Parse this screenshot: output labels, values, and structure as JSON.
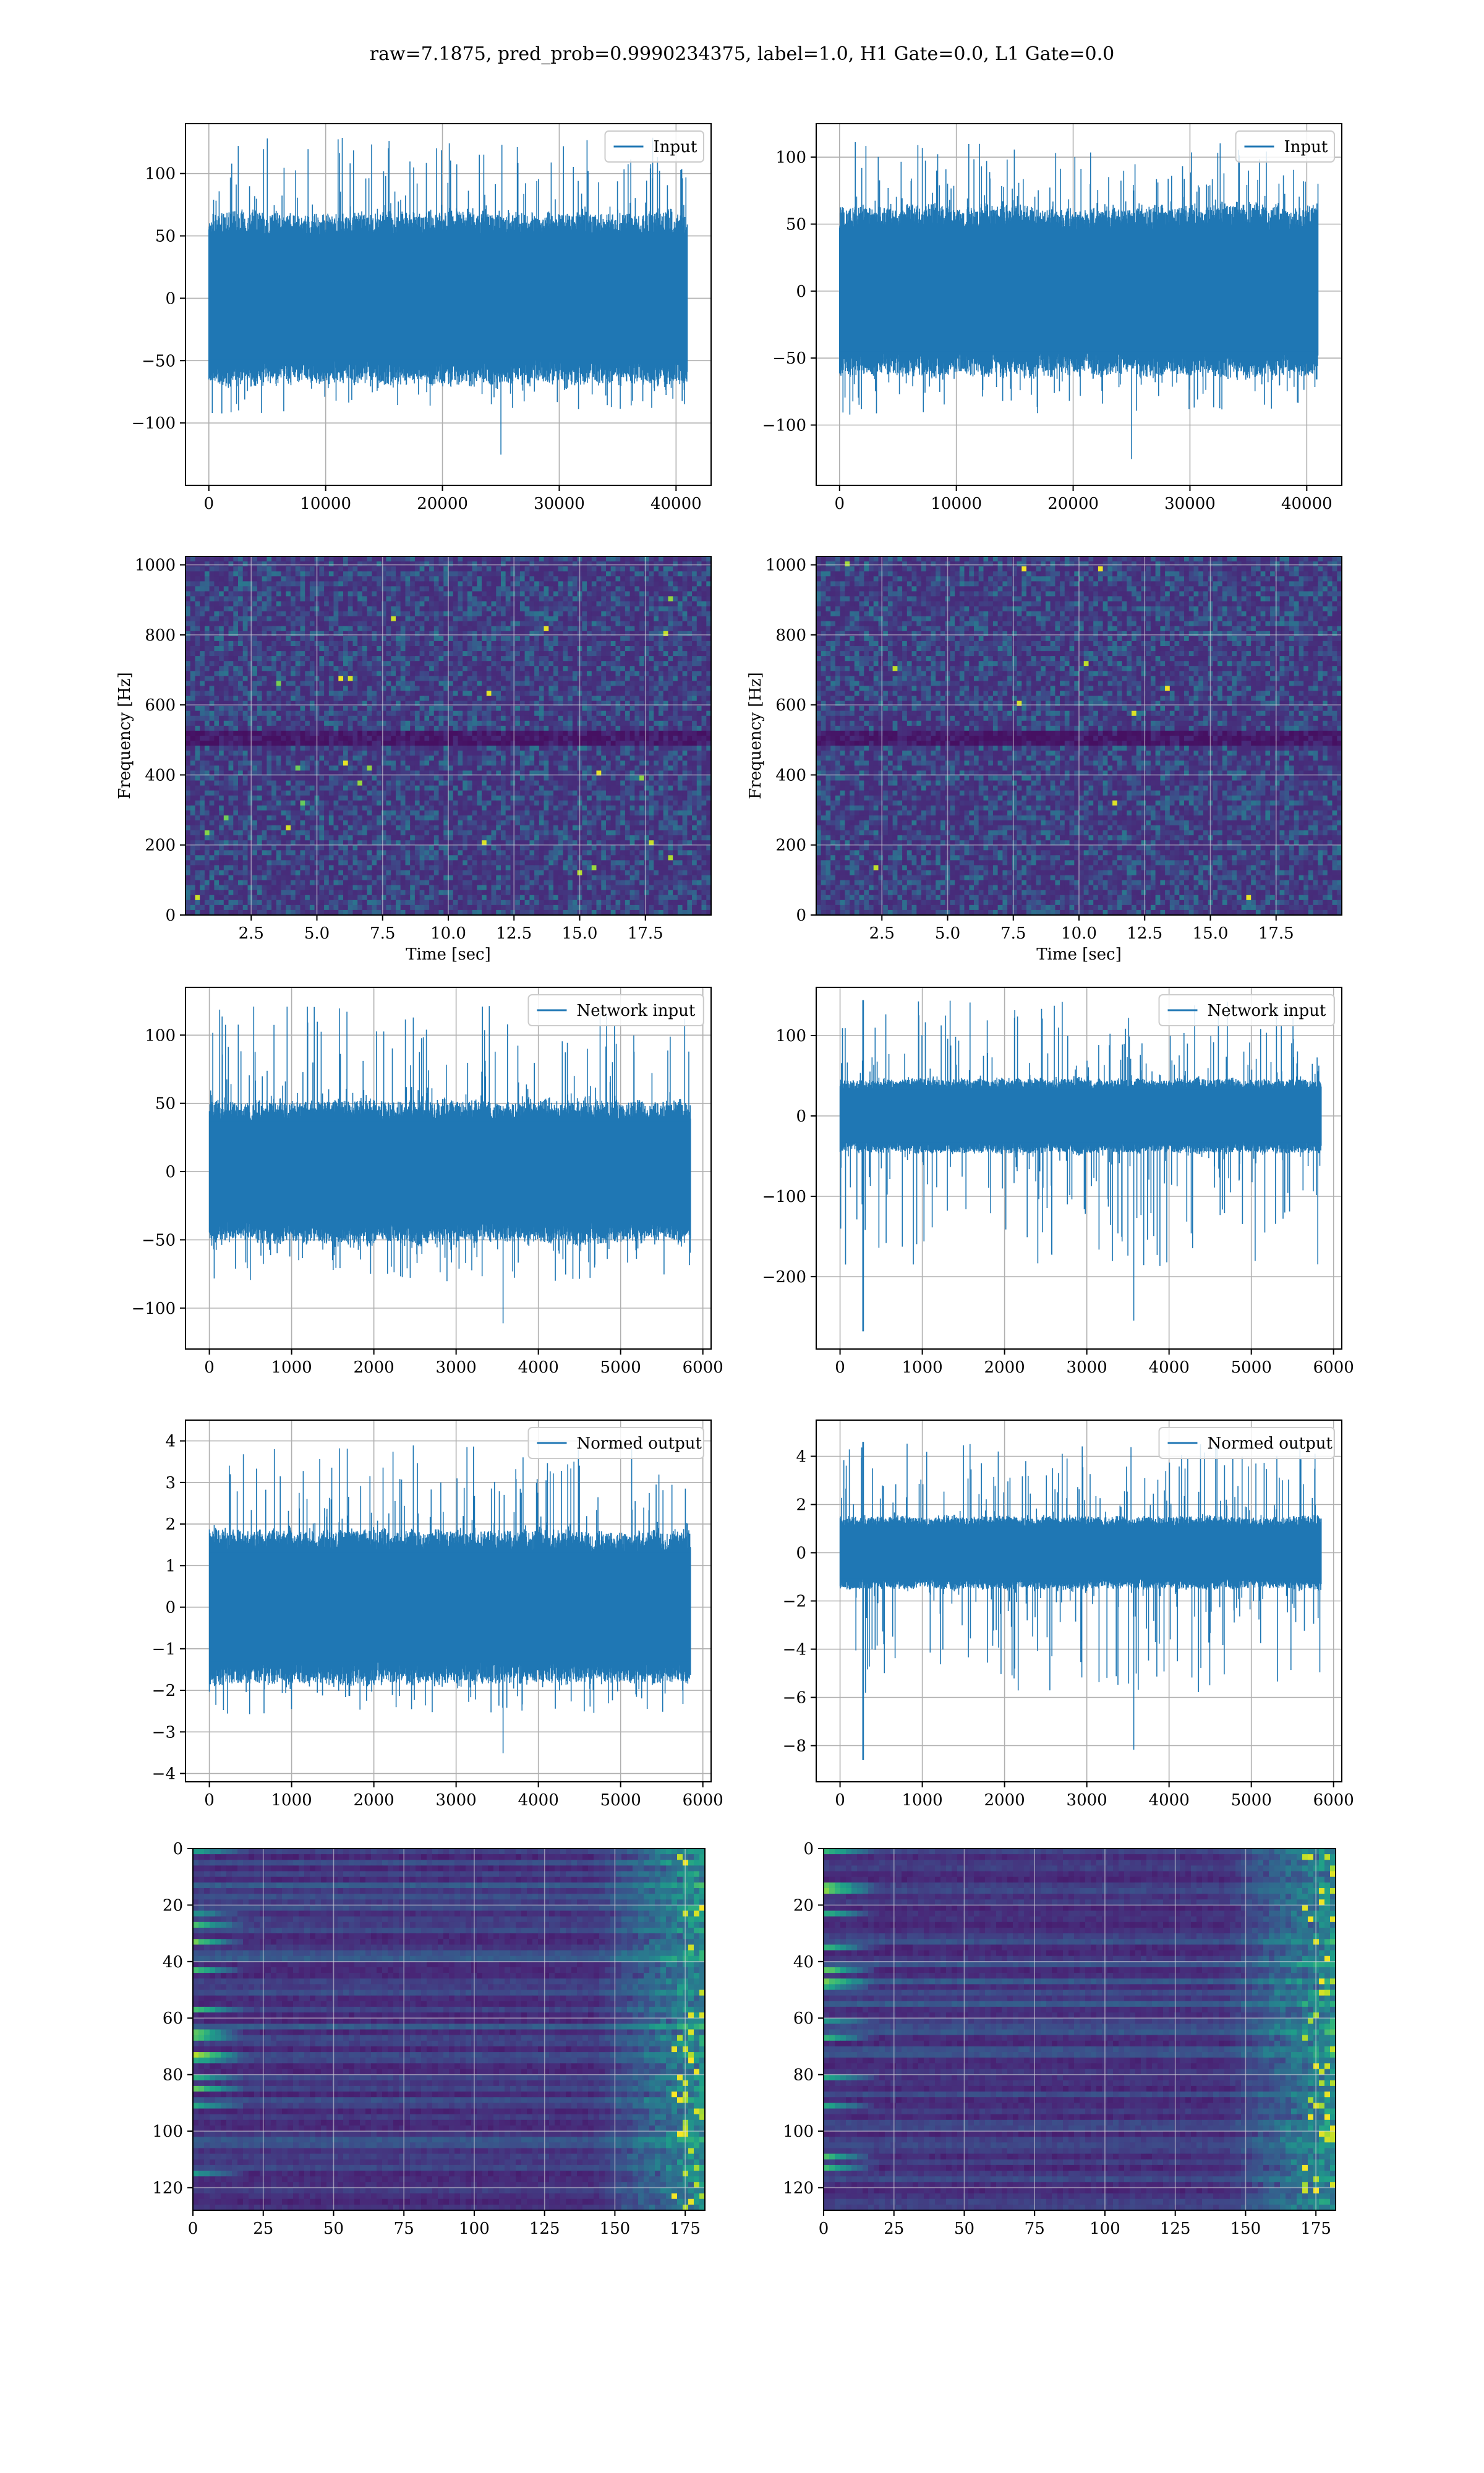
{
  "figure_title": "raw=7.1875, pred_prob=0.9990234375, label=1.0, H1 Gate=0.0, L1 Gate=0.0",
  "colors": {
    "line": "#1f77b4",
    "grid": "#b0b0b0",
    "axes": "#000000"
  },
  "chart_data": [
    {
      "type": "line",
      "id": "h1-input",
      "xlabel": "",
      "ylabel": "",
      "legend": {
        "labels": [
          "Input"
        ],
        "position": "upper right"
      },
      "xlim": [
        -2000,
        43000
      ],
      "ylim": [
        -150,
        140
      ],
      "grid": true,
      "xticks": [
        0,
        10000,
        20000,
        30000,
        40000
      ],
      "xticklabels": [
        "0",
        "10000",
        "20000",
        "30000",
        "40000"
      ],
      "yticks": [
        -100,
        -50,
        0,
        50,
        100
      ],
      "yticklabels": [
        "−100",
        "−50",
        "0",
        "50",
        "100"
      ],
      "series": [
        {
          "name": "Input",
          "x_range": [
            0,
            40960
          ],
          "n_points": 40960,
          "band_abs": 60,
          "spike_max": 130,
          "spike_min": -132
        }
      ]
    },
    {
      "type": "line",
      "id": "l1-input",
      "xlabel": "",
      "ylabel": "",
      "legend": {
        "labels": [
          "Input"
        ],
        "position": "upper right"
      },
      "xlim": [
        -2000,
        43000
      ],
      "ylim": [
        -145,
        125
      ],
      "grid": true,
      "xticks": [
        0,
        10000,
        20000,
        30000,
        40000
      ],
      "xticklabels": [
        "0",
        "10000",
        "20000",
        "30000",
        "40000"
      ],
      "yticks": [
        -100,
        -50,
        0,
        50,
        100
      ],
      "yticklabels": [
        "−100",
        "−50",
        "0",
        "50",
        "100"
      ],
      "series": [
        {
          "name": "Input",
          "x_range": [
            0,
            40960
          ],
          "n_points": 40960,
          "band_abs": 55,
          "spike_max": 112,
          "spike_min": -132
        }
      ]
    },
    {
      "type": "heatmap",
      "id": "h1-spectrogram",
      "xlabel": "Time [sec]",
      "ylabel": "Frequency [Hz]",
      "xlim": [
        0,
        20
      ],
      "ylim": [
        0,
        1024
      ],
      "grid": true,
      "colormap": "viridis",
      "xticks": [
        2.5,
        5,
        7.5,
        10,
        12.5,
        15,
        17.5
      ],
      "xticklabels": [
        "2.5",
        "5.0",
        "7.5",
        "10.0",
        "12.5",
        "15.0",
        "17.5"
      ],
      "yticks": [
        0,
        200,
        400,
        600,
        800,
        1000
      ],
      "yticklabels": [
        "0",
        "200",
        "400",
        "600",
        "800",
        "1000"
      ],
      "notch_frequency_hz": 512
    },
    {
      "type": "heatmap",
      "id": "l1-spectrogram",
      "xlabel": "Time [sec]",
      "ylabel": "Frequency [Hz]",
      "xlim": [
        0,
        20
      ],
      "ylim": [
        0,
        1024
      ],
      "grid": true,
      "colormap": "viridis",
      "xticks": [
        2.5,
        5,
        7.5,
        10,
        12.5,
        15,
        17.5
      ],
      "xticklabels": [
        "2.5",
        "5.0",
        "7.5",
        "10.0",
        "12.5",
        "15.0",
        "17.5"
      ],
      "yticks": [
        0,
        200,
        400,
        600,
        800,
        1000
      ],
      "yticklabels": [
        "0",
        "200",
        "400",
        "600",
        "800",
        "1000"
      ],
      "notch_frequency_hz": 512
    },
    {
      "type": "line",
      "id": "h1-network-input",
      "xlabel": "",
      "ylabel": "",
      "legend": {
        "labels": [
          "Network input"
        ],
        "position": "upper right"
      },
      "xlim": [
        -290,
        6100
      ],
      "ylim": [
        -130,
        135
      ],
      "grid": true,
      "xticks": [
        0,
        1000,
        2000,
        3000,
        4000,
        5000,
        6000
      ],
      "xticklabels": [
        "0",
        "1000",
        "2000",
        "3000",
        "4000",
        "5000",
        "6000"
      ],
      "yticks": [
        -100,
        -50,
        0,
        50,
        100
      ],
      "yticklabels": [
        "−100",
        "−50",
        "0",
        "50",
        "100"
      ],
      "series": [
        {
          "name": "Network input",
          "x_range": [
            0,
            5850
          ],
          "n_points": 5850,
          "band_abs": 45,
          "spike_max": 122,
          "spike_min": -117
        }
      ]
    },
    {
      "type": "line",
      "id": "l1-network-input",
      "xlabel": "",
      "ylabel": "",
      "legend": {
        "labels": [
          "Network input"
        ],
        "position": "upper right"
      },
      "xlim": [
        -290,
        6100
      ],
      "ylim": [
        -290,
        160
      ],
      "grid": true,
      "xticks": [
        0,
        1000,
        2000,
        3000,
        4000,
        5000,
        6000
      ],
      "xticklabels": [
        "0",
        "1000",
        "2000",
        "3000",
        "4000",
        "5000",
        "6000"
      ],
      "yticks": [
        -200,
        -100,
        0,
        100
      ],
      "yticklabels": [
        "−200",
        "−100",
        "0",
        "100"
      ],
      "series": [
        {
          "name": "Network input",
          "x_range": [
            0,
            5850
          ],
          "n_points": 5850,
          "band_abs": 40,
          "spike_max": 144,
          "spike_min": -268,
          "glitch_x": 280
        }
      ]
    },
    {
      "type": "line",
      "id": "h1-normed-output",
      "xlabel": "",
      "ylabel": "",
      "legend": {
        "labels": [
          "Normed output"
        ],
        "position": "upper right"
      },
      "xlim": [
        -290,
        6100
      ],
      "ylim": [
        -4.2,
        4.5
      ],
      "grid": true,
      "xticks": [
        0,
        1000,
        2000,
        3000,
        4000,
        5000,
        6000
      ],
      "xticklabels": [
        "0",
        "1000",
        "2000",
        "3000",
        "4000",
        "5000",
        "6000"
      ],
      "yticks": [
        -4,
        -3,
        -2,
        -1,
        0,
        1,
        2,
        3,
        4
      ],
      "yticklabels": [
        "−4",
        "−3",
        "−2",
        "−1",
        "0",
        "1",
        "2",
        "3",
        "4"
      ],
      "series": [
        {
          "name": "Normed output",
          "x_range": [
            0,
            5850
          ],
          "n_points": 5850,
          "band_abs": 1.6,
          "spike_max": 3.9,
          "spike_min": -3.7
        }
      ]
    },
    {
      "type": "line",
      "id": "l1-normed-output",
      "xlabel": "",
      "ylabel": "",
      "legend": {
        "labels": [
          "Normed output"
        ],
        "position": "upper right"
      },
      "xlim": [
        -290,
        6100
      ],
      "ylim": [
        -9.5,
        5.5
      ],
      "grid": true,
      "xticks": [
        0,
        1000,
        2000,
        3000,
        4000,
        5000,
        6000
      ],
      "xticklabels": [
        "0",
        "1000",
        "2000",
        "3000",
        "4000",
        "5000",
        "6000"
      ],
      "yticks": [
        -8,
        -6,
        -4,
        -2,
        0,
        2,
        4
      ],
      "yticklabels": [
        "−8",
        "−6",
        "−4",
        "−2",
        "0",
        "2",
        "4"
      ],
      "series": [
        {
          "name": "Normed output",
          "x_range": [
            0,
            5850
          ],
          "n_points": 5850,
          "band_abs": 1.3,
          "spike_max": 4.6,
          "spike_min": -8.6,
          "glitch_x": 280
        }
      ]
    },
    {
      "type": "heatmap",
      "id": "h1-feature-map",
      "xlabel": "",
      "ylabel": "",
      "xlim": [
        0,
        182
      ],
      "ylim": [
        128,
        0
      ],
      "grid": true,
      "colormap": "viridis",
      "xticks": [
        0,
        25,
        50,
        75,
        100,
        125,
        150,
        175
      ],
      "xticklabels": [
        "0",
        "25",
        "50",
        "75",
        "100",
        "125",
        "150",
        "175"
      ],
      "yticks": [
        0,
        20,
        40,
        60,
        80,
        100,
        120
      ],
      "yticklabels": [
        "0",
        "20",
        "40",
        "60",
        "80",
        "100",
        "120"
      ]
    },
    {
      "type": "heatmap",
      "id": "l1-feature-map",
      "xlabel": "",
      "ylabel": "",
      "xlim": [
        0,
        182
      ],
      "ylim": [
        128,
        0
      ],
      "grid": true,
      "colormap": "viridis",
      "xticks": [
        0,
        25,
        50,
        75,
        100,
        125,
        150,
        175
      ],
      "xticklabels": [
        "0",
        "25",
        "50",
        "75",
        "100",
        "125",
        "150",
        "175"
      ],
      "yticks": [
        0,
        20,
        40,
        60,
        80,
        100,
        120
      ],
      "yticklabels": [
        "0",
        "20",
        "40",
        "60",
        "80",
        "100",
        "120"
      ]
    }
  ]
}
